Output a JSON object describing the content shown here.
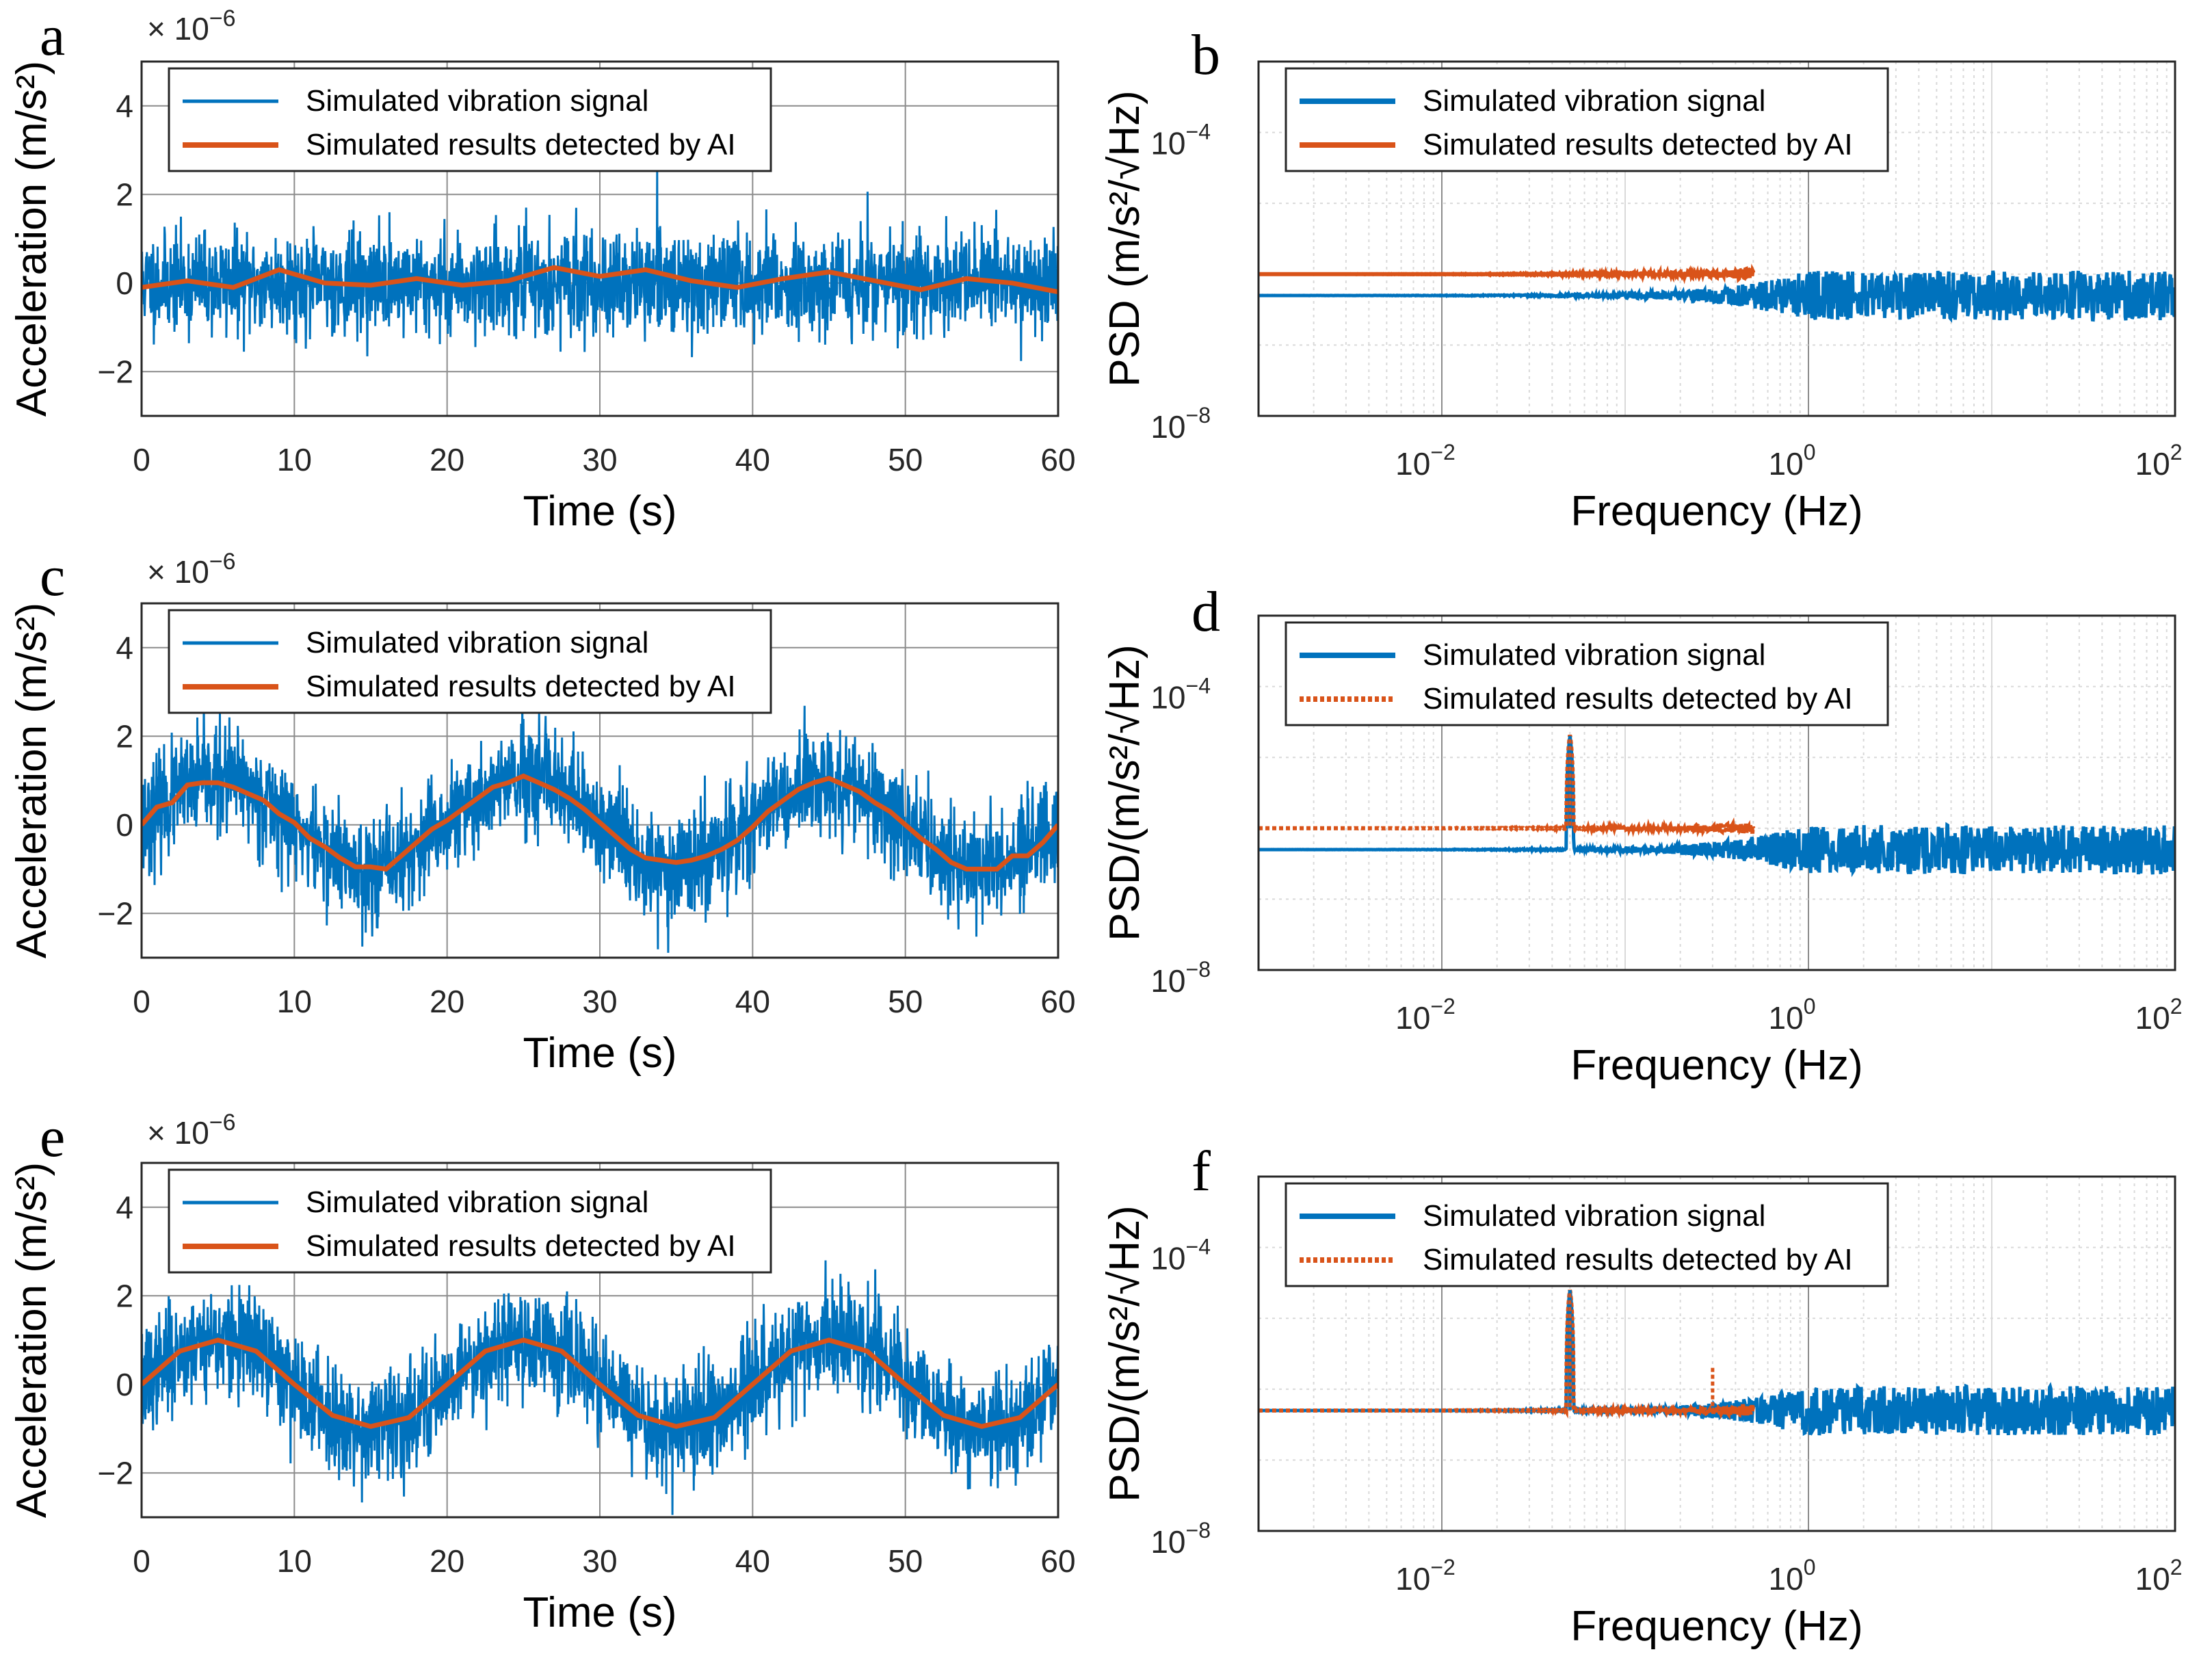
{
  "colors": {
    "signal": "#0072BD",
    "detected": "#D95319",
    "grid": "#d9d9d9",
    "axis": "#262626"
  },
  "chart_data": [
    {
      "panel": "a",
      "type": "line",
      "xlabel": "Time  (s)",
      "ylabel": "Acceleration  (m/s²)",
      "multiplier": "× 10",
      "multiplier_exp": "−6",
      "xlim": [
        0,
        60
      ],
      "ylim": [
        -3,
        5
      ],
      "xticks": [
        0,
        10,
        20,
        30,
        40,
        50,
        60
      ],
      "yticks": [
        {
          "v": -2,
          "label": "−2"
        },
        {
          "v": 0,
          "label": "0"
        },
        {
          "v": 2,
          "label": "2"
        },
        {
          "v": 4,
          "label": "4"
        }
      ],
      "legend": [
        "Simulated vibration signal",
        "Simulated results detected by AI"
      ],
      "signal_model": {
        "amp": 0,
        "period": 20,
        "phase": 0,
        "noise": 0.55,
        "seed": 11
      },
      "detected_x": [
        0,
        3,
        6,
        9,
        12,
        15,
        18,
        21,
        24,
        27,
        30,
        33,
        36,
        39,
        42,
        45,
        48,
        51,
        54,
        57,
        60
      ],
      "detected_y": [
        -0.1,
        0.05,
        -0.1,
        0.3,
        0.0,
        -0.05,
        0.1,
        -0.05,
        0.05,
        0.35,
        0.15,
        0.3,
        0.05,
        -0.1,
        0.1,
        0.25,
        0.05,
        -0.15,
        0.1,
        0.0,
        -0.2
      ]
    },
    {
      "panel": "b",
      "type": "line",
      "scale": "log-log",
      "xlabel": "Frequency  (Hz)",
      "ylabel": "PSD  (m/s²/√Hz)",
      "xlim": [
        0.001,
        100
      ],
      "ylim": [
        1e-08,
        0.001
      ],
      "xticks": [
        {
          "v": 0.01,
          "base": "10",
          "exp": "−2"
        },
        {
          "v": 1,
          "base": "10",
          "exp": "0"
        },
        {
          "v": 100,
          "base": "10",
          "exp": "2"
        }
      ],
      "yticks": [
        {
          "v": 1e-08,
          "base": "10",
          "exp": "−8"
        },
        {
          "v": 0.0001,
          "base": "10",
          "exp": "−4"
        }
      ],
      "legend": [
        "Simulated vibration signal",
        "Simulated results detected by AI"
      ],
      "detected_style": "solid",
      "signal_level": 5e-07,
      "signal_range": [
        0.001,
        100
      ],
      "detected_level": 1e-06,
      "detected_range": [
        0.001,
        0.5
      ],
      "peak": null
    },
    {
      "panel": "c",
      "type": "line",
      "xlabel": "Time  (s)",
      "ylabel": "Acceleration  (m/s²)",
      "multiplier": "× 10",
      "multiplier_exp": "−6",
      "xlim": [
        0,
        60
      ],
      "ylim": [
        -3,
        5
      ],
      "xticks": [
        0,
        10,
        20,
        30,
        40,
        50,
        60
      ],
      "yticks": [
        {
          "v": -2,
          "label": "−2"
        },
        {
          "v": 0,
          "label": "0"
        },
        {
          "v": 2,
          "label": "2"
        },
        {
          "v": 4,
          "label": "4"
        }
      ],
      "legend": [
        "Simulated vibration signal",
        "Simulated results detected by AI"
      ],
      "signal_model": {
        "amp": 1.0,
        "period": 20,
        "phase": 0,
        "noise": 0.6,
        "seed": 23
      },
      "detected_x": [
        0,
        1,
        2,
        3,
        4,
        5,
        6,
        7,
        8,
        9,
        10,
        11,
        12,
        13,
        14,
        15,
        16,
        17,
        18,
        19,
        20,
        21,
        22,
        23,
        24,
        25,
        26,
        27,
        28,
        29,
        30,
        31,
        32,
        33,
        34,
        35,
        36,
        37,
        38,
        39,
        40,
        41,
        42,
        43,
        44,
        45,
        46,
        47,
        48,
        49,
        50,
        51,
        52,
        53,
        54,
        55,
        56,
        57,
        58,
        59,
        60
      ],
      "detected_y": [
        0.0,
        0.4,
        0.5,
        0.9,
        0.95,
        0.95,
        0.85,
        0.7,
        0.55,
        0.25,
        0.05,
        -0.3,
        -0.5,
        -0.75,
        -0.95,
        -0.95,
        -1.0,
        -0.7,
        -0.4,
        -0.1,
        0.1,
        0.35,
        0.6,
        0.85,
        0.95,
        1.1,
        0.95,
        0.8,
        0.6,
        0.35,
        0.05,
        -0.25,
        -0.55,
        -0.75,
        -0.8,
        -0.85,
        -0.8,
        -0.7,
        -0.55,
        -0.35,
        -0.05,
        0.3,
        0.55,
        0.8,
        0.95,
        1.05,
        0.9,
        0.75,
        0.5,
        0.3,
        0.0,
        -0.3,
        -0.55,
        -0.85,
        -1.0,
        -1.0,
        -1.0,
        -0.7,
        -0.7,
        -0.4,
        0.0
      ]
    },
    {
      "panel": "d",
      "type": "line",
      "scale": "log-log",
      "xlabel": "Frequency  (Hz)",
      "ylabel": "PSD/(m/s²/√Hz)",
      "xlim": [
        0.001,
        100
      ],
      "ylim": [
        1e-08,
        0.001
      ],
      "xticks": [
        {
          "v": 0.01,
          "base": "10",
          "exp": "−2"
        },
        {
          "v": 1,
          "base": "10",
          "exp": "0"
        },
        {
          "v": 100,
          "base": "10",
          "exp": "2"
        }
      ],
      "yticks": [
        {
          "v": 1e-08,
          "base": "10",
          "exp": "−8"
        },
        {
          "v": 0.0001,
          "base": "10",
          "exp": "−4"
        }
      ],
      "legend": [
        "Simulated vibration signal",
        "Simulated results detected by AI"
      ],
      "detected_style": "dotted",
      "signal_level": 5e-07,
      "signal_range": [
        0.001,
        100
      ],
      "detected_level": 1e-06,
      "detected_range": [
        0.001,
        0.5
      ],
      "peak": {
        "f": 0.05,
        "value": 2e-05
      }
    },
    {
      "panel": "e",
      "type": "line",
      "xlabel": "Time  (s)",
      "ylabel": "Acceleration  (m/s²)",
      "multiplier": "× 10",
      "multiplier_exp": "−6",
      "xlim": [
        0,
        60
      ],
      "ylim": [
        -3,
        5
      ],
      "xticks": [
        0,
        10,
        20,
        30,
        40,
        50,
        60
      ],
      "yticks": [
        {
          "v": -2,
          "label": "−2"
        },
        {
          "v": 0,
          "label": "0"
        },
        {
          "v": 2,
          "label": "2"
        },
        {
          "v": 4,
          "label": "4"
        }
      ],
      "legend": [
        "Simulated vibration signal",
        "Simulated results detected by AI"
      ],
      "signal_model": {
        "amp": 1.0,
        "period": 20,
        "phase": 0,
        "noise": 0.6,
        "seed": 37
      },
      "detected_x": [
        0,
        2.5,
        5,
        7.5,
        10,
        12.5,
        15,
        17.5,
        20,
        22.5,
        25,
        27.5,
        30,
        32.5,
        35,
        37.5,
        40,
        42.5,
        45,
        47.5,
        50,
        52.5,
        55,
        57.5,
        60
      ],
      "detected_y": [
        0.0,
        0.75,
        1.0,
        0.75,
        0.0,
        -0.7,
        -0.95,
        -0.75,
        0.0,
        0.75,
        1.0,
        0.75,
        0.0,
        -0.7,
        -0.95,
        -0.75,
        0.0,
        0.75,
        1.0,
        0.75,
        0.0,
        -0.7,
        -0.95,
        -0.75,
        0.0
      ]
    },
    {
      "panel": "f",
      "type": "line",
      "scale": "log-log",
      "xlabel": "Frequency  (Hz)",
      "ylabel": "PSD/(m/s²/√Hz)",
      "xlim": [
        0.001,
        100
      ],
      "ylim": [
        1e-08,
        0.001
      ],
      "xticks": [
        {
          "v": 0.01,
          "base": "10",
          "exp": "−2"
        },
        {
          "v": 1,
          "base": "10",
          "exp": "0"
        },
        {
          "v": 100,
          "base": "10",
          "exp": "2"
        }
      ],
      "yticks": [
        {
          "v": 1e-08,
          "base": "10",
          "exp": "−8"
        },
        {
          "v": 0.0001,
          "base": "10",
          "exp": "−4"
        }
      ],
      "legend": [
        "Simulated vibration signal",
        "Simulated results detected by AI"
      ],
      "detected_style": "dotted",
      "signal_level": 5e-07,
      "signal_range": [
        0.001,
        100
      ],
      "detected_level": 5e-07,
      "detected_range": [
        0.001,
        0.5
      ],
      "peak": {
        "f": 0.05,
        "value": 2.5e-05
      },
      "extra_spike": {
        "f": 0.3,
        "value": 2e-06
      }
    }
  ]
}
